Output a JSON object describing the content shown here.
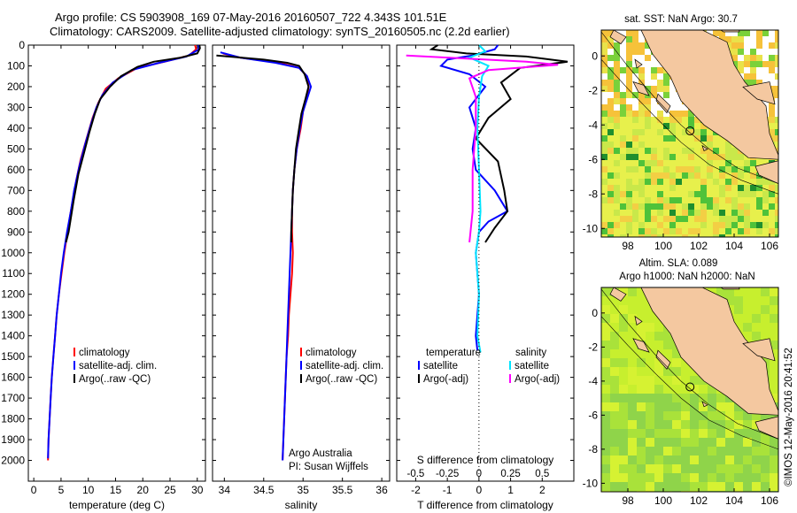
{
  "header": {
    "line1": "Argo profile: CS 5903908_169 07-May-2016 20160507_722 4.343S 101.51E",
    "line2": "Climatology: CARS2009. Satellite-adjusted climatology: synTS_20160505.nc (2.2d earlier)"
  },
  "colors": {
    "climatology": "#ff0000",
    "satellite_temp": "#0000ff",
    "argo": "#000000",
    "satellite_sal": "#00e5ff",
    "argo_sal": "#ff00ff"
  },
  "chart_data": [
    {
      "id": "temperature",
      "type": "line",
      "xlabel": "temperature (deg C)",
      "ylabel": "",
      "xlim": [
        -1,
        31.5
      ],
      "ylim": [
        2100,
        0
      ],
      "xticks": [
        0,
        5,
        10,
        15,
        20,
        25,
        30
      ],
      "yticks": [
        0,
        100,
        200,
        300,
        400,
        500,
        600,
        700,
        800,
        900,
        1000,
        1100,
        1200,
        1300,
        1400,
        1500,
        1600,
        1700,
        1800,
        1900,
        2000
      ],
      "legend": [
        "climatology",
        "satellite-adj. clim.",
        "Argo(..raw -QC)"
      ],
      "series": [
        {
          "name": "climatology",
          "color": "#ff0000",
          "points": [
            [
              29.6,
              0
            ],
            [
              29.8,
              20
            ],
            [
              28.5,
              50
            ],
            [
              24,
              80
            ],
            [
              19,
              110
            ],
            [
              15.5,
              160
            ],
            [
              13.2,
              210
            ],
            [
              11.8,
              280
            ],
            [
              10.8,
              350
            ],
            [
              9.7,
              450
            ],
            [
              8.6,
              550
            ],
            [
              7.8,
              650
            ],
            [
              6.8,
              800
            ],
            [
              6.2,
              900
            ],
            [
              5.6,
              1000
            ],
            [
              5.1,
              1100
            ],
            [
              4.6,
              1200
            ],
            [
              4.2,
              1300
            ],
            [
              3.9,
              1400
            ],
            [
              3.6,
              1500
            ],
            [
              3.3,
              1600
            ],
            [
              3.1,
              1700
            ],
            [
              2.9,
              1800
            ],
            [
              2.7,
              1900
            ],
            [
              2.6,
              2000
            ]
          ]
        },
        {
          "name": "satellite-adj. clim.",
          "color": "#0000ff",
          "points": [
            [
              30.2,
              0
            ],
            [
              30.3,
              20
            ],
            [
              28,
              55
            ],
            [
              23,
              85
            ],
            [
              18,
              120
            ],
            [
              14.5,
              180
            ],
            [
              12.6,
              240
            ],
            [
              11.5,
              300
            ],
            [
              10.5,
              380
            ],
            [
              9.4,
              480
            ],
            [
              8.4,
              580
            ],
            [
              7.4,
              700
            ],
            [
              6.8,
              800
            ],
            [
              6.1,
              900
            ],
            [
              5.5,
              1000
            ],
            [
              5,
              1100
            ],
            [
              4.6,
              1200
            ],
            [
              4.2,
              1300
            ],
            [
              3.9,
              1400
            ],
            [
              3.6,
              1500
            ],
            [
              3.3,
              1600
            ],
            [
              3.1,
              1700
            ],
            [
              2.9,
              1800
            ],
            [
              2.7,
              1900
            ],
            [
              2.6,
              1990
            ]
          ]
        },
        {
          "name": "Argo(..raw -QC)",
          "color": "#000000",
          "points": [
            [
              30.4,
              0
            ],
            [
              30.5,
              15
            ],
            [
              30,
              40
            ],
            [
              27,
              60
            ],
            [
              22,
              80
            ],
            [
              19,
              105
            ],
            [
              16,
              150
            ],
            [
              14,
              200
            ],
            [
              12.2,
              260
            ],
            [
              11.2,
              330
            ],
            [
              10.2,
              420
            ],
            [
              9.2,
              520
            ],
            [
              8.2,
              620
            ],
            [
              7.3,
              750
            ],
            [
              6.4,
              900
            ],
            [
              5.9,
              950
            ]
          ]
        }
      ]
    },
    {
      "id": "salinity",
      "type": "line",
      "xlabel": "salinity",
      "ylabel": "",
      "xlim": [
        33.85,
        36.1
      ],
      "ylim": [
        2100,
        0
      ],
      "xticks": [
        34,
        34.5,
        35,
        35.5,
        36
      ],
      "yticks": [
        0,
        100,
        200,
        300,
        400,
        500,
        600,
        700,
        800,
        900,
        1000,
        1100,
        1200,
        1300,
        1400,
        1500,
        1600,
        1700,
        1800,
        1900,
        2000
      ],
      "legend": [
        "climatology",
        "satellite-adj. clim.",
        "Argo(..raw -QC)"
      ],
      "annotations": [
        "Argo Australia",
        "PI: Susan Wijffels"
      ],
      "series": [
        {
          "name": "climatology",
          "color": "#ff0000",
          "points": [
            [
              33.98,
              40
            ],
            [
              34.2,
              60
            ],
            [
              34.7,
              85
            ],
            [
              34.95,
              110
            ],
            [
              35.05,
              150
            ],
            [
              35.07,
              200
            ],
            [
              35.05,
              250
            ],
            [
              35,
              320
            ],
            [
              34.97,
              400
            ],
            [
              34.92,
              500
            ],
            [
              34.89,
              600
            ],
            [
              34.87,
              700
            ],
            [
              34.86,
              800
            ],
            [
              34.86,
              900
            ],
            [
              34.87,
              1000
            ],
            [
              34.86,
              1100
            ],
            [
              34.84,
              1200
            ],
            [
              34.82,
              1300
            ],
            [
              34.81,
              1400
            ],
            [
              34.79,
              1500
            ],
            [
              34.78,
              1600
            ],
            [
              34.77,
              1700
            ],
            [
              34.76,
              1800
            ],
            [
              34.75,
              1900
            ],
            [
              34.74,
              2000
            ]
          ]
        },
        {
          "name": "satellite-adj. clim.",
          "color": "#0000ff",
          "points": [
            [
              33.95,
              35
            ],
            [
              34.2,
              60
            ],
            [
              34.65,
              85
            ],
            [
              34.95,
              110
            ],
            [
              35.05,
              150
            ],
            [
              35.1,
              200
            ],
            [
              35.05,
              260
            ],
            [
              35,
              320
            ],
            [
              34.96,
              400
            ],
            [
              34.92,
              500
            ],
            [
              34.89,
              600
            ],
            [
              34.87,
              700
            ],
            [
              34.86,
              800
            ],
            [
              34.85,
              900
            ],
            [
              34.84,
              1000
            ],
            [
              34.83,
              1100
            ],
            [
              34.82,
              1200
            ],
            [
              34.81,
              1300
            ],
            [
              34.8,
              1400
            ],
            [
              34.79,
              1500
            ],
            [
              34.78,
              1600
            ],
            [
              34.77,
              1700
            ],
            [
              34.76,
              1800
            ],
            [
              34.75,
              1900
            ],
            [
              34.74,
              2000
            ]
          ]
        },
        {
          "name": "Argo(..raw -QC)",
          "color": "#000000",
          "points": [
            [
              33.9,
              50
            ],
            [
              34.05,
              55
            ],
            [
              34.5,
              70
            ],
            [
              34.8,
              85
            ],
            [
              34.95,
              100
            ],
            [
              35.02,
              140
            ],
            [
              35.07,
              200
            ],
            [
              35.03,
              260
            ],
            [
              34.98,
              330
            ],
            [
              34.95,
              400
            ],
            [
              34.91,
              500
            ],
            [
              34.89,
              600
            ],
            [
              34.87,
              700
            ],
            [
              34.86,
              800
            ],
            [
              34.85,
              900
            ],
            [
              34.85,
              950
            ]
          ]
        }
      ]
    },
    {
      "id": "difference",
      "type": "line",
      "xlabel": "T difference from climatology",
      "xlabel_top": "S difference from climatology",
      "xlim": [
        -2.6,
        3
      ],
      "ylim": [
        2100,
        0
      ],
      "xticks": [
        -2,
        -1,
        0,
        1,
        2
      ],
      "s_ticks": [
        "-0.5",
        "-0.25",
        "0",
        "0.25",
        "0.5"
      ],
      "yticks": [
        0,
        100,
        200,
        300,
        400,
        500,
        600,
        700,
        800,
        900,
        1000,
        1100,
        1200,
        1300,
        1400,
        1500,
        1600,
        1700,
        1800,
        1900,
        2000
      ],
      "legend_temperature": [
        "temperature",
        "satellite",
        "Argo(-adj)"
      ],
      "legend_salinity": [
        "salinity",
        "satellite",
        "Argo(-adj)"
      ],
      "series": [
        {
          "name": "temperature satellite",
          "color": "#0000ff",
          "points": [
            [
              0.6,
              0
            ],
            [
              0.5,
              20
            ],
            [
              -0.2,
              50
            ],
            [
              -1,
              70
            ],
            [
              -1.2,
              100
            ],
            [
              -0.3,
              140
            ],
            [
              0.2,
              200
            ],
            [
              -0.3,
              300
            ],
            [
              -0.1,
              400
            ],
            [
              -0.2,
              500
            ],
            [
              -0.1,
              600
            ],
            [
              0.5,
              700
            ],
            [
              0.9,
              800
            ],
            [
              0.3,
              850
            ],
            [
              0,
              900
            ],
            [
              -0.1,
              1000
            ],
            [
              0,
              1200
            ],
            [
              -0.1,
              1400
            ],
            [
              -0.05,
              1470
            ]
          ]
        },
        {
          "name": "temperature Argo(-adj)",
          "color": "#000000",
          "points": [
            [
              -1.3,
              0
            ],
            [
              -1.5,
              20
            ],
            [
              -0.4,
              40
            ],
            [
              1.5,
              55
            ],
            [
              2.8,
              80
            ],
            [
              1.3,
              110
            ],
            [
              0.7,
              180
            ],
            [
              1,
              260
            ],
            [
              0.3,
              350
            ],
            [
              -0.1,
              450
            ],
            [
              0.6,
              560
            ],
            [
              0.8,
              700
            ],
            [
              0.9,
              800
            ],
            [
              0.5,
              880
            ],
            [
              0.2,
              950
            ]
          ]
        },
        {
          "name": "salinity satellite",
          "color": "#00e5ff",
          "points": [
            [
              0,
              0
            ],
            [
              0.2,
              30
            ],
            [
              -0.3,
              60
            ],
            [
              0.3,
              100
            ],
            [
              0.1,
              150
            ],
            [
              0,
              250
            ],
            [
              -0.05,
              400
            ],
            [
              0,
              600
            ],
            [
              0.05,
              800
            ],
            [
              0,
              900
            ],
            [
              -0.1,
              1000
            ],
            [
              0,
              1200
            ],
            [
              -0.05,
              1400
            ],
            [
              0.05,
              1480
            ]
          ]
        },
        {
          "name": "salinity Argo(-adj)",
          "color": "#ff00ff",
          "points": [
            [
              -2.3,
              50
            ],
            [
              -1,
              60
            ],
            [
              1.5,
              80
            ],
            [
              2.5,
              95
            ],
            [
              0.3,
              120
            ],
            [
              -0.3,
              160
            ],
            [
              -0.1,
              250
            ],
            [
              -0.1,
              400
            ],
            [
              -0.2,
              600
            ],
            [
              -0.2,
              800
            ],
            [
              -0.3,
              950
            ]
          ]
        }
      ]
    },
    {
      "id": "sst_map",
      "type": "heatmap",
      "title": "sat. SST: NaN Argo: 30.7",
      "xlim": [
        96.5,
        106.5
      ],
      "ylim": [
        -10.5,
        1.5
      ],
      "xticks": [
        98,
        100,
        102,
        104,
        106
      ],
      "yticks": [
        0,
        -2,
        -4,
        -6,
        -8,
        -10
      ],
      "argo_position": [
        101.51,
        -4.343
      ]
    },
    {
      "id": "sla_map",
      "type": "heatmap",
      "title_line1": "Altim. SLA: 0.089",
      "title_line2": "Argo h1000: NaN h2000: NaN",
      "xlim": [
        96.5,
        106.5
      ],
      "ylim": [
        -10.5,
        1.5
      ],
      "xticks": [
        98,
        100,
        102,
        104,
        106
      ],
      "yticks": [
        0,
        -2,
        -4,
        -6,
        -8,
        -10
      ],
      "argo_position": [
        101.51,
        -4.343
      ]
    }
  ],
  "footer": {
    "stamp": "©IMOS 12-May-2016 20:41:52"
  }
}
